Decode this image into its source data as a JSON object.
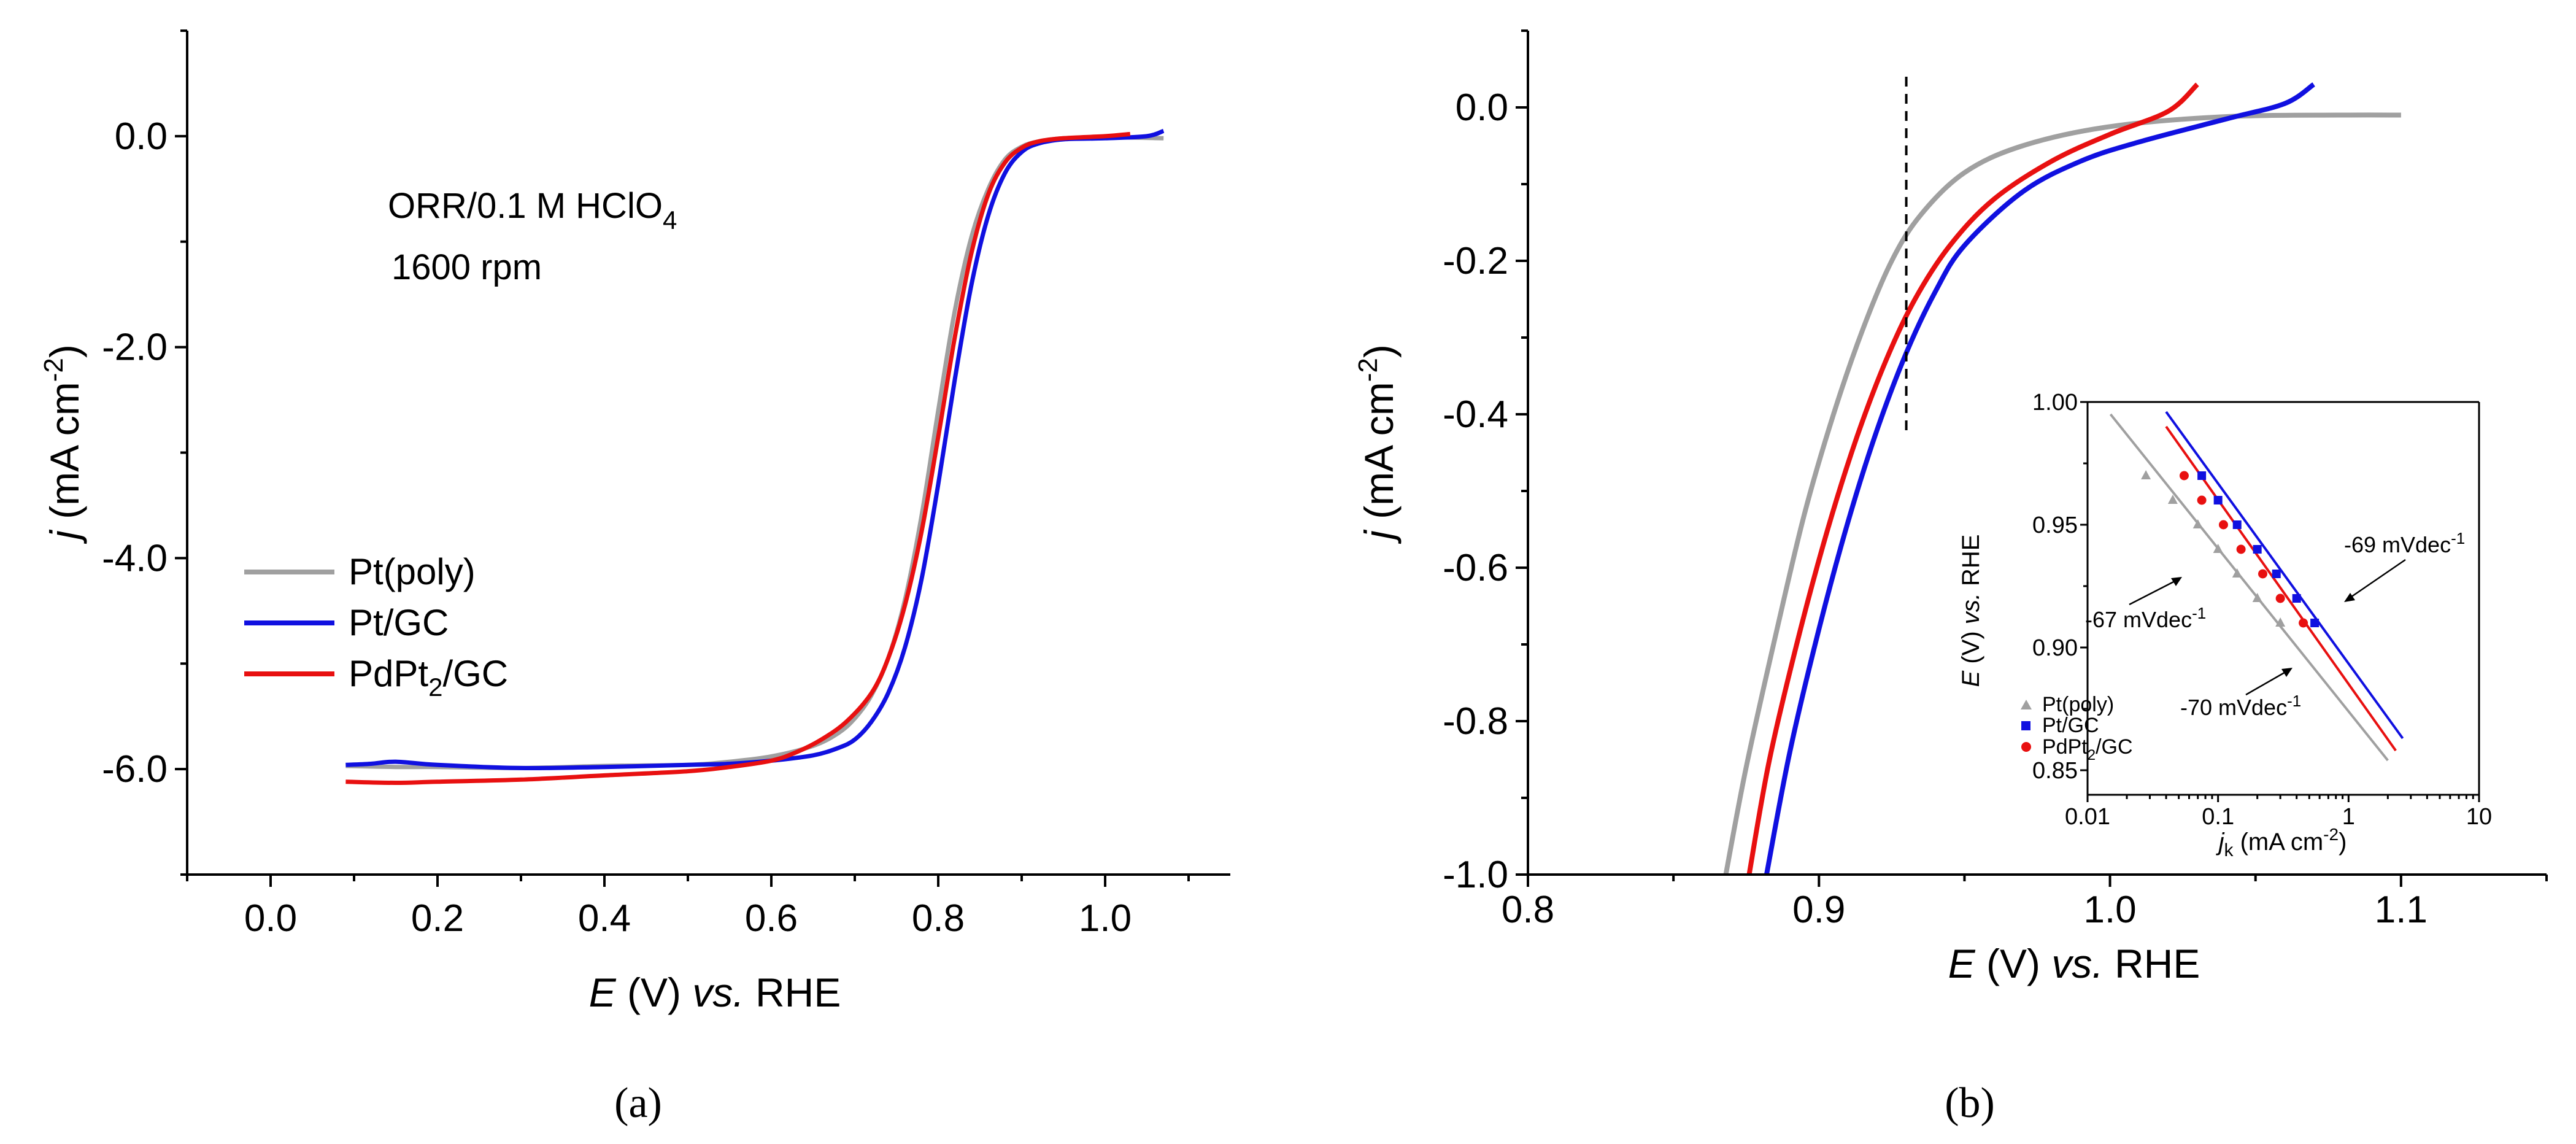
{
  "figure": {
    "panel_a_label": "(a)",
    "panel_b_label": "(b)",
    "colors": {
      "pt_poly": "#a0a0a0",
      "pt_gc": "#1010e0",
      "pdpt2_gc": "#e81010",
      "axis": "#000000"
    }
  },
  "chart_data": [
    {
      "type": "line",
      "panel": "a",
      "xlabel": "E (V) vs. RHE",
      "ylabel": "j (mA cm-2)",
      "xlim": [
        -0.1,
        1.15
      ],
      "ylim": [
        -7.0,
        1.0
      ],
      "xticks": [
        "0.0",
        "0.2",
        "0.4",
        "0.6",
        "0.8",
        "1.0"
      ],
      "xtick_values": [
        0.0,
        0.2,
        0.4,
        0.6,
        0.8,
        1.0
      ],
      "yticks": [
        "0.0",
        "-2.0",
        "-4.0",
        "-6.0"
      ],
      "ytick_values": [
        0.0,
        -2.0,
        -4.0,
        -6.0
      ],
      "annotation_line1": "ORR/0.1 M HClO",
      "annotation_line1_sub": "4",
      "annotation_line2": "1600 rpm",
      "legend": {
        "position": "middle-left",
        "entries": [
          {
            "key": "pt_poly",
            "text": "Pt(poly)",
            "sub": "",
            "text_after": ""
          },
          {
            "key": "pt_gc",
            "text": "Pt/GC",
            "sub": "",
            "text_after": ""
          },
          {
            "key": "pdpt2_gc",
            "text": "PdPt",
            "sub": "2",
            "text_after": "/GC"
          }
        ]
      },
      "series": [
        {
          "name": "Pt(poly)",
          "key": "pt_poly",
          "x": [
            0.09,
            0.15,
            0.2,
            0.3,
            0.4,
            0.5,
            0.55,
            0.6,
            0.65,
            0.68,
            0.7,
            0.72,
            0.74,
            0.76,
            0.78,
            0.8,
            0.82,
            0.84,
            0.86,
            0.88,
            0.9,
            0.92,
            0.95,
            1.0,
            1.07
          ],
          "y": [
            -5.97,
            -5.98,
            -5.98,
            -5.99,
            -5.97,
            -5.96,
            -5.93,
            -5.88,
            -5.78,
            -5.66,
            -5.52,
            -5.3,
            -4.95,
            -4.4,
            -3.6,
            -2.6,
            -1.65,
            -0.95,
            -0.5,
            -0.22,
            -0.1,
            -0.05,
            -0.02,
            -0.01,
            -0.02
          ]
        },
        {
          "name": "Pt/GC",
          "key": "pt_gc",
          "x": [
            0.09,
            0.12,
            0.15,
            0.2,
            0.3,
            0.4,
            0.5,
            0.55,
            0.6,
            0.65,
            0.68,
            0.7,
            0.72,
            0.74,
            0.76,
            0.78,
            0.8,
            0.82,
            0.84,
            0.86,
            0.88,
            0.9,
            0.92,
            0.95,
            1.0,
            1.05,
            1.07
          ],
          "y": [
            -5.96,
            -5.95,
            -5.93,
            -5.96,
            -5.99,
            -5.98,
            -5.96,
            -5.95,
            -5.92,
            -5.87,
            -5.8,
            -5.72,
            -5.55,
            -5.28,
            -4.85,
            -4.2,
            -3.3,
            -2.3,
            -1.4,
            -0.75,
            -0.35,
            -0.15,
            -0.07,
            -0.03,
            -0.02,
            0.0,
            0.05
          ]
        },
        {
          "name": "PdPt2/GC",
          "key": "pdpt2_gc",
          "x": [
            0.09,
            0.15,
            0.2,
            0.3,
            0.4,
            0.5,
            0.55,
            0.6,
            0.63,
            0.66,
            0.69,
            0.72,
            0.74,
            0.76,
            0.78,
            0.8,
            0.82,
            0.84,
            0.86,
            0.88,
            0.9,
            0.92,
            0.95,
            1.0,
            1.03
          ],
          "y": [
            -6.12,
            -6.13,
            -6.12,
            -6.1,
            -6.06,
            -6.02,
            -5.98,
            -5.92,
            -5.84,
            -5.72,
            -5.55,
            -5.28,
            -4.95,
            -4.45,
            -3.75,
            -2.85,
            -1.9,
            -1.1,
            -0.55,
            -0.25,
            -0.11,
            -0.05,
            -0.02,
            0.0,
            0.02
          ]
        }
      ]
    },
    {
      "type": "line",
      "panel": "b",
      "xlabel": "E (V) vs. RHE",
      "ylabel": "j (mA cm-2)",
      "xlim": [
        0.8,
        1.15
      ],
      "ylim": [
        -1.0,
        0.1
      ],
      "xticks": [
        "0.8",
        "0.9",
        "1.0",
        "1.1"
      ],
      "xtick_values": [
        0.8,
        0.9,
        1.0,
        1.1
      ],
      "yticks": [
        "0.0",
        "-0.2",
        "-0.4",
        "-0.6",
        "-0.8",
        "-1.0"
      ],
      "ytick_values": [
        0.0,
        -0.2,
        -0.4,
        -0.6,
        -0.8,
        -1.0
      ],
      "dashed_marker_x": 0.93,
      "dashed_marker_y_range": [
        -0.43,
        0.04
      ],
      "series": [
        {
          "name": "Pt(poly)",
          "key": "pt_poly",
          "x": [
            0.868,
            0.875,
            0.885,
            0.895,
            0.905,
            0.915,
            0.925,
            0.935,
            0.95,
            0.97,
            1.0,
            1.04,
            1.08,
            1.1
          ],
          "y": [
            -1.0,
            -0.86,
            -0.69,
            -0.53,
            -0.4,
            -0.29,
            -0.2,
            -0.14,
            -0.085,
            -0.05,
            -0.025,
            -0.012,
            -0.01,
            -0.01
          ]
        },
        {
          "name": "Pt/GC",
          "key": "pt_gc",
          "x": [
            0.882,
            0.89,
            0.9,
            0.91,
            0.92,
            0.93,
            0.94,
            0.95,
            0.97,
            0.99,
            1.01,
            1.04,
            1.06,
            1.07
          ],
          "y": [
            -1.0,
            -0.84,
            -0.68,
            -0.54,
            -0.42,
            -0.32,
            -0.24,
            -0.18,
            -0.11,
            -0.07,
            -0.045,
            -0.015,
            0.005,
            0.03
          ]
        },
        {
          "name": "PdPt2/GC",
          "key": "pdpt2_gc",
          "x": [
            0.876,
            0.883,
            0.893,
            0.903,
            0.913,
            0.923,
            0.933,
            0.945,
            0.96,
            0.98,
            1.0,
            1.02,
            1.03
          ],
          "y": [
            -1.0,
            -0.85,
            -0.69,
            -0.55,
            -0.43,
            -0.33,
            -0.25,
            -0.18,
            -0.12,
            -0.07,
            -0.035,
            -0.005,
            0.03
          ]
        }
      ]
    },
    {
      "type": "scatter",
      "panel": "b-inset",
      "xlabel": "jk (mA cm-2)",
      "ylabel": "E (V) vs. RHE",
      "xscale": "log",
      "xlim": [
        0.01,
        10
      ],
      "ylim": [
        0.84,
        1.0
      ],
      "xticks": [
        "0.01",
        "0.1",
        "1",
        "10"
      ],
      "xtick_values": [
        0.01,
        0.1,
        1,
        10
      ],
      "yticks": [
        "1.00",
        "0.95",
        "0.90",
        "0.85"
      ],
      "ytick_values": [
        1.0,
        0.95,
        0.9,
        0.85
      ],
      "legend": {
        "position": "bottom-left",
        "entries": [
          {
            "key": "pt_poly",
            "marker": "triangle",
            "text": "Pt(poly)",
            "sub": "",
            "text_after": ""
          },
          {
            "key": "pt_gc",
            "marker": "square",
            "text": "Pt/GC",
            "sub": "",
            "text_after": ""
          },
          {
            "key": "pdpt2_gc",
            "marker": "circle",
            "text": "PdPt",
            "sub": "2",
            "text_after": "/GC"
          }
        ]
      },
      "annotations": [
        {
          "text": "-67 mVdec",
          "sup": "-1"
        },
        {
          "text": "-69 mVdec",
          "sup": "-1"
        },
        {
          "text": "-70 mVdec",
          "sup": "-1"
        }
      ],
      "series": [
        {
          "name": "Pt(poly)",
          "key": "pt_poly",
          "marker": "triangle",
          "x": [
            0.028,
            0.045,
            0.07,
            0.1,
            0.14,
            0.2,
            0.3
          ],
          "y": [
            0.97,
            0.96,
            0.95,
            0.94,
            0.93,
            0.92,
            0.91
          ],
          "fit": {
            "x": [
              0.015,
              2.0
            ],
            "y": [
              0.995,
              0.854
            ]
          }
        },
        {
          "name": "Pt/GC",
          "key": "pt_gc",
          "marker": "square",
          "x": [
            0.075,
            0.1,
            0.14,
            0.2,
            0.28,
            0.4,
            0.55
          ],
          "y": [
            0.97,
            0.96,
            0.95,
            0.94,
            0.93,
            0.92,
            0.91
          ],
          "fit": {
            "x": [
              0.04,
              2.6
            ],
            "y": [
              0.996,
              0.863
            ]
          }
        },
        {
          "name": "PdPt2/GC",
          "key": "pdpt2_gc",
          "marker": "circle",
          "x": [
            0.055,
            0.075,
            0.11,
            0.15,
            0.22,
            0.3,
            0.45
          ],
          "y": [
            0.97,
            0.96,
            0.95,
            0.94,
            0.93,
            0.92,
            0.91
          ],
          "fit": {
            "x": [
              0.04,
              2.3
            ],
            "y": [
              0.99,
              0.858
            ]
          }
        }
      ]
    }
  ]
}
